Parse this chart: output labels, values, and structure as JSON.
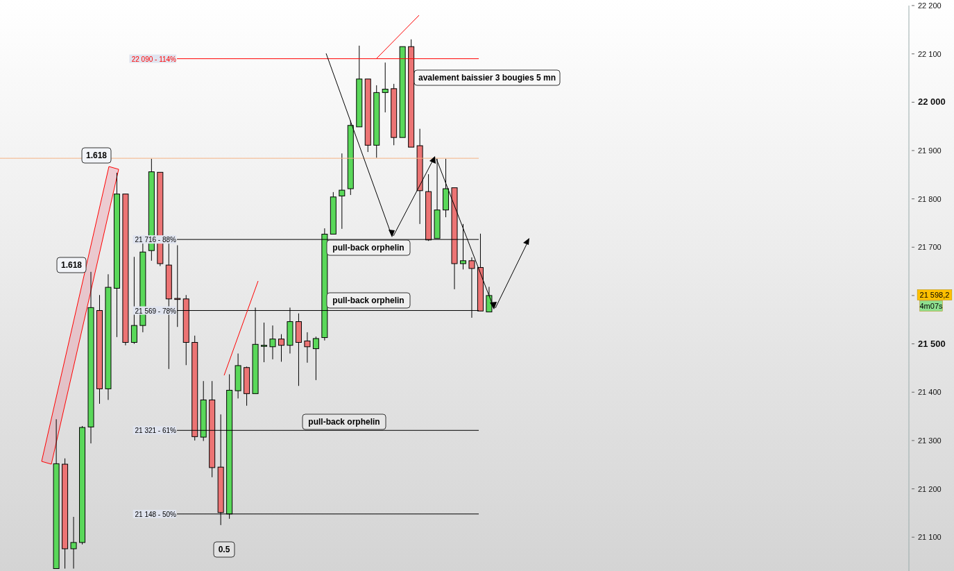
{
  "chart_data": {
    "type": "candlestick",
    "categories": [
      null,
      null,
      null,
      null,
      null,
      null,
      null,
      null,
      null,
      null,
      null,
      null,
      null,
      null,
      null,
      null,
      null,
      null,
      null,
      null,
      null,
      null,
      null,
      null,
      null,
      null,
      null,
      null,
      null,
      null,
      null,
      null,
      null,
      null,
      null,
      null,
      null,
      null,
      null,
      null,
      null,
      null,
      null,
      null,
      null,
      null,
      null,
      null,
      null,
      null,
      null,
      null,
      null,
      null,
      null,
      null,
      null,
      null,
      null,
      null,
      null,
      null,
      null,
      null,
      null,
      null,
      null,
      null,
      null,
      null,
      null,
      null,
      null,
      null,
      null,
      null,
      null,
      null,
      null,
      null,
      null,
      null,
      null,
      null,
      null,
      null,
      null,
      null,
      null,
      null,
      null,
      null,
      null,
      null,
      null,
      null,
      null,
      null,
      null,
      null,
      null,
      null,
      null,
      null,
      null
    ],
    "ohlc": [
      null,
      null,
      null,
      null,
      null,
      null,
      [
        21035,
        21344,
        21035,
        21252
      ],
      [
        21251,
        21263,
        21035,
        21076
      ],
      [
        21076,
        21142,
        21035,
        21089
      ],
      [
        21089,
        21330,
        21085,
        21327
      ],
      [
        21328,
        21649,
        21294,
        21575
      ],
      [
        21569,
        21601,
        21376,
        21407
      ],
      [
        21407,
        21644,
        21384,
        21617
      ],
      [
        21615,
        21854,
        21514,
        21810
      ],
      [
        21810,
        21810,
        21497,
        21503
      ],
      [
        21503,
        21680,
        21500,
        21538
      ],
      [
        21538,
        21713,
        21524,
        21690
      ],
      [
        21693,
        21883,
        21672,
        21856
      ],
      [
        21855,
        21855,
        21661,
        21666
      ],
      [
        21663,
        21708,
        21448,
        21593
      ],
      [
        21594,
        21704,
        21535,
        21593
      ],
      [
        21593,
        21601,
        21456,
        21503
      ],
      [
        21503,
        21517,
        21300,
        21308
      ],
      [
        21307,
        21423,
        21299,
        21384
      ],
      [
        21384,
        21423,
        21224,
        21244
      ],
      [
        21245,
        21354,
        21125,
        21151
      ],
      [
        21148,
        21437,
        21138,
        21404
      ],
      [
        21403,
        21480,
        21387,
        21455
      ],
      [
        21451,
        21453,
        21372,
        21397
      ],
      [
        21397,
        21575,
        21397,
        21499
      ],
      [
        21497,
        21544,
        21462,
        21497
      ],
      [
        21494,
        21538,
        21468,
        21510
      ],
      [
        21510,
        21520,
        21463,
        21497
      ],
      [
        21497,
        21575,
        21480,
        21546
      ],
      [
        21546,
        21563,
        21413,
        21503
      ],
      [
        21506,
        21524,
        21461,
        21494
      ],
      [
        21490,
        21515,
        21425,
        21511
      ],
      [
        21513,
        21739,
        21507,
        21727
      ],
      [
        21727,
        21814,
        21727,
        21804
      ],
      [
        21806,
        21894,
        21738,
        21818
      ],
      [
        21821,
        21962,
        21808,
        21952
      ],
      [
        21949,
        22117,
        21949,
        22048
      ],
      [
        22048,
        22048,
        21897,
        21911
      ],
      [
        21911,
        22035,
        21885,
        22020
      ],
      [
        22020,
        22082,
        21979,
        22027
      ],
      [
        22028,
        22038,
        21911,
        21927
      ],
      [
        21927,
        22115,
        21927,
        22115
      ],
      [
        22115,
        22130,
        21907,
        21907
      ],
      [
        21910,
        21945,
        21748,
        21817
      ],
      [
        21815,
        21851,
        21713,
        21715
      ],
      [
        21718,
        21883,
        21718,
        21777
      ],
      [
        21777,
        21883,
        21762,
        21821
      ],
      [
        21823,
        21823,
        21613,
        21666
      ],
      [
        21666,
        21748,
        21654,
        21672
      ],
      [
        21672,
        21679,
        21554,
        21656
      ],
      [
        21658,
        21728,
        21568,
        21568
      ],
      [
        21566,
        21618,
        21566,
        21600
      ],
      null,
      null,
      null,
      null,
      null,
      null,
      null,
      null,
      null,
      null,
      null,
      null,
      null,
      null,
      null,
      null,
      null,
      null,
      null,
      null,
      null,
      null,
      null,
      null,
      null,
      null,
      null,
      null,
      null,
      null,
      null,
      null,
      null,
      null,
      null,
      null,
      null,
      null,
      null,
      null,
      null,
      null,
      null,
      null,
      null,
      null,
      null,
      null
    ],
    "ylim": [
      21030,
      22200
    ],
    "yticks": [
      {
        "value": 21100,
        "label": "21 100"
      },
      {
        "value": 21200,
        "label": "21 200"
      },
      {
        "value": 21300,
        "label": "21 300"
      },
      {
        "value": 21400,
        "label": "21 400"
      },
      {
        "value": 21500,
        "label": "21 500"
      },
      {
        "value": 21600,
        "label": null
      },
      {
        "value": 21700,
        "label": "21 700"
      },
      {
        "value": 21800,
        "label": "21 800"
      },
      {
        "value": 21900,
        "label": "21 900"
      },
      {
        "value": 22000,
        "label": "22 000"
      },
      {
        "value": 22100,
        "label": "22 100"
      },
      {
        "value": 22200,
        "label": "22 200"
      }
    ],
    "ref_lines": [
      {
        "axis": "y",
        "value": 22090,
        "label": "22 090 - 114%",
        "color": "#ff0000"
      },
      {
        "axis": "y",
        "value": 21884,
        "color": "#f4b183"
      },
      {
        "axis": "y",
        "value": 21716,
        "label": "21 716 - 88%",
        "color": "#000000"
      },
      {
        "axis": "y",
        "value": 21569,
        "label": "21 569 - 78%",
        "color": "#000000"
      },
      {
        "axis": "y",
        "value": 21321,
        "label": "21 321 - 61%",
        "color": "#000000"
      },
      {
        "axis": "y",
        "value": 21148,
        "label": "21 148 - 50%",
        "color": "#000000"
      }
    ],
    "annotations": [
      "1.618",
      "1.618",
      "0.5",
      "pull-back orphelin",
      "pull-back orphelin",
      "pull-back orphelin",
      "avalement baissier 3 bougies 5 mn",
      "21 598,2",
      "4m07s"
    ]
  }
}
